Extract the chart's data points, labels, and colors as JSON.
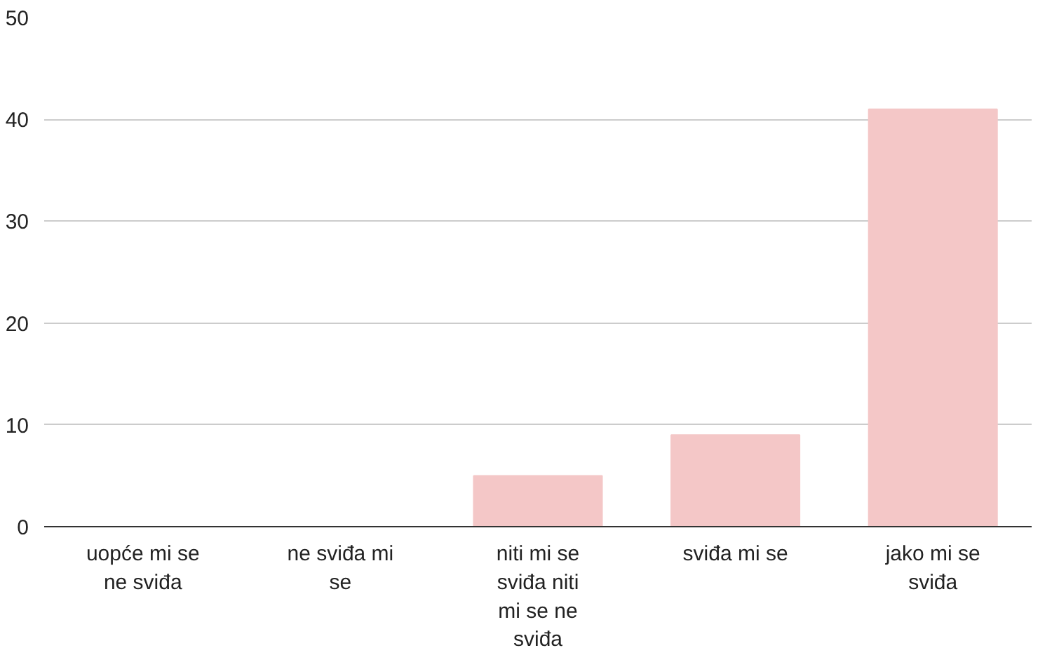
{
  "chart_data": {
    "type": "bar",
    "categories": [
      "uopće mi se ne sviđa",
      "ne sviđa mi se",
      "niti mi se sviđa niti mi se ne sviđa",
      "sviđa mi se",
      "jako mi se sviđa"
    ],
    "values": [
      0,
      0,
      5,
      9,
      41
    ],
    "color": "#f4c7c7",
    "ylim": [
      0,
      50
    ],
    "yticks": [
      0,
      10,
      20,
      30,
      40,
      50
    ],
    "grid": "y"
  }
}
